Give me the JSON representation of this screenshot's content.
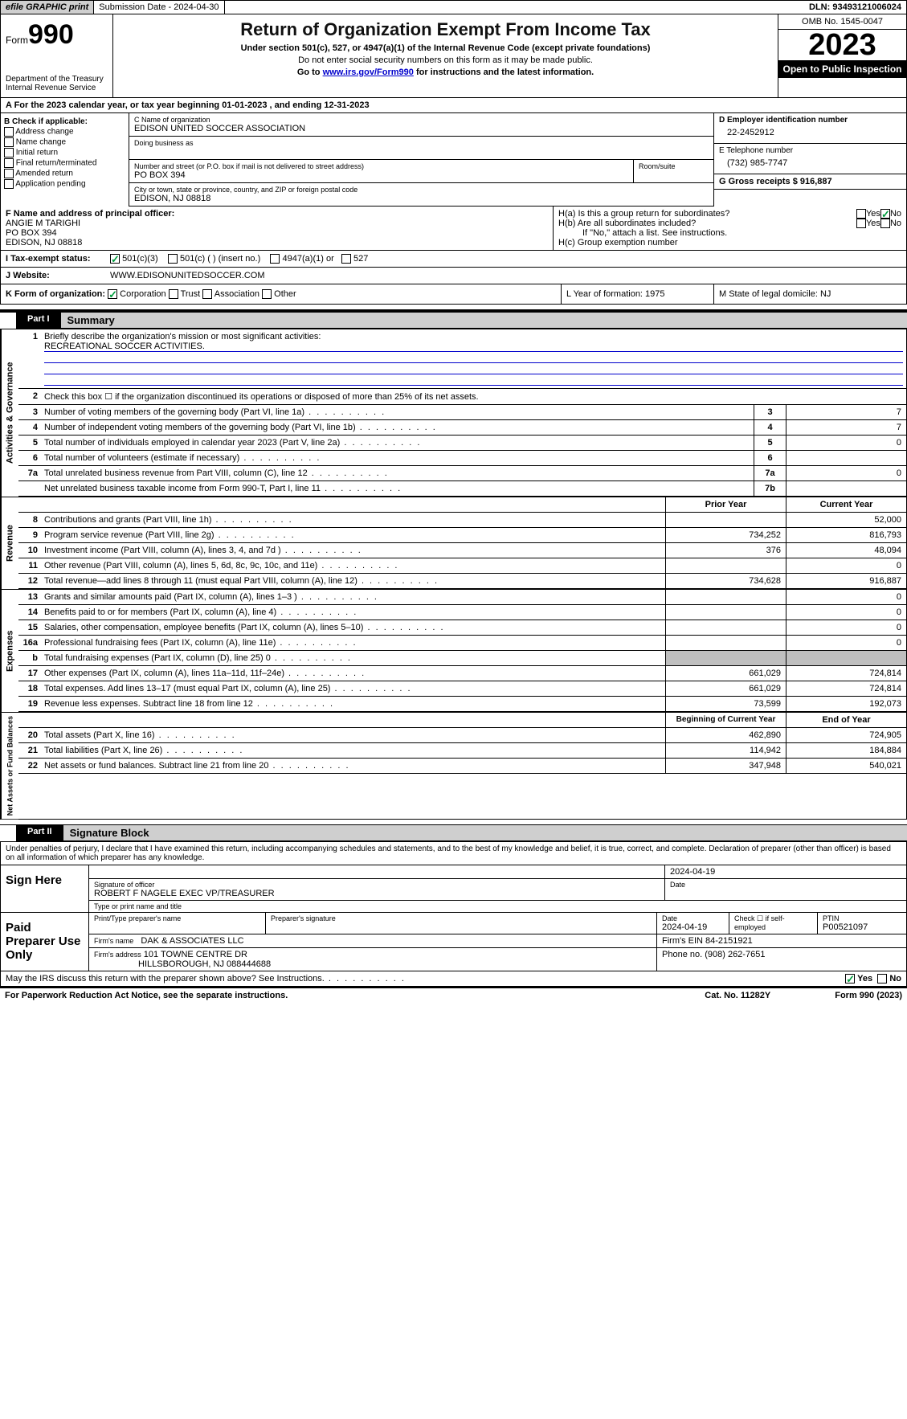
{
  "top": {
    "efile": "efile GRAPHIC print",
    "submission": "Submission Date - 2024-04-30",
    "dln": "DLN: 93493121006024"
  },
  "header": {
    "form_label": "Form",
    "form_num": "990",
    "dept": "Department of the Treasury Internal Revenue Service",
    "title": "Return of Organization Exempt From Income Tax",
    "sub": "Under section 501(c), 527, or 4947(a)(1) of the Internal Revenue Code (except private foundations)",
    "note1": "Do not enter social security numbers on this form as it may be made public.",
    "note2_pre": "Go to ",
    "note2_link": "www.irs.gov/Form990",
    "note2_post": " for instructions and the latest information.",
    "omb": "OMB No. 1545-0047",
    "year": "2023",
    "open": "Open to Public Inspection"
  },
  "line_a": "A For the 2023 calendar year, or tax year beginning 01-01-2023    , and ending 12-31-2023",
  "col_b": {
    "title": "B Check if applicable:",
    "items": [
      "Address change",
      "Name change",
      "Initial return",
      "Final return/terminated",
      "Amended return",
      "Application pending"
    ]
  },
  "col_c": {
    "name_label": "C Name of organization",
    "name": "EDISON UNITED SOCCER ASSOCIATION",
    "dba_label": "Doing business as",
    "street_label": "Number and street (or P.O. box if mail is not delivered to street address)",
    "street": "PO BOX 394",
    "room_label": "Room/suite",
    "city_label": "City or town, state or province, country, and ZIP or foreign postal code",
    "city": "EDISON, NJ  08818"
  },
  "col_d": {
    "label": "D Employer identification number",
    "val": "22-2452912"
  },
  "col_e": {
    "label": "E Telephone number",
    "val": "(732) 985-7747"
  },
  "col_g": {
    "label": "G Gross receipts $ 916,887"
  },
  "row_f": {
    "label": "F  Name and address of principal officer:",
    "name": "ANGIE M TARIGHI",
    "addr1": "PO BOX 394",
    "addr2": "EDISON, NJ  08818",
    "ha": "H(a)  Is this a group return for subordinates?",
    "hb": "H(b)  Are all subordinates included?",
    "hnote": "If \"No,\" attach a list. See instructions.",
    "hc": "H(c)  Group exemption number"
  },
  "line_i": {
    "label": "I  Tax-exempt status:",
    "opt1": "501(c)(3)",
    "opt2": "501(c) (   ) (insert no.)",
    "opt3": "4947(a)(1) or",
    "opt4": "527"
  },
  "line_j": {
    "label": "J  Website:",
    "val": "WWW.EDISONUNITEDSOCCER.COM"
  },
  "line_k": {
    "label": "K Form of organization:",
    "opts": [
      "Corporation",
      "Trust",
      "Association",
      "Other"
    ],
    "l": "L Year of formation: 1975",
    "m": "M State of legal domicile: NJ"
  },
  "part1": {
    "hdr": "Part I",
    "title": "Summary",
    "r1": "Briefly describe the organization's mission or most significant activities:",
    "r1_val": "RECREATIONAL SOCCER ACTIVITIES.",
    "r2": "Check this box ☐ if the organization discontinued its operations or disposed of more than 25% of its net assets.",
    "rows_gov": [
      {
        "n": "3",
        "d": "Number of voting members of the governing body (Part VI, line 1a)",
        "b": "3",
        "v": "7"
      },
      {
        "n": "4",
        "d": "Number of independent voting members of the governing body (Part VI, line 1b)",
        "b": "4",
        "v": "7"
      },
      {
        "n": "5",
        "d": "Total number of individuals employed in calendar year 2023 (Part V, line 2a)",
        "b": "5",
        "v": "0"
      },
      {
        "n": "6",
        "d": "Total number of volunteers (estimate if necessary)",
        "b": "6",
        "v": ""
      },
      {
        "n": "7a",
        "d": "Total unrelated business revenue from Part VIII, column (C), line 12",
        "b": "7a",
        "v": "0"
      },
      {
        "n": "",
        "d": "Net unrelated business taxable income from Form 990-T, Part I, line 11",
        "b": "7b",
        "v": ""
      }
    ],
    "col_hdr": {
      "py": "Prior Year",
      "cy": "Current Year"
    },
    "rows_rev": [
      {
        "n": "8",
        "d": "Contributions and grants (Part VIII, line 1h)",
        "py": "",
        "cy": "52,000"
      },
      {
        "n": "9",
        "d": "Program service revenue (Part VIII, line 2g)",
        "py": "734,252",
        "cy": "816,793"
      },
      {
        "n": "10",
        "d": "Investment income (Part VIII, column (A), lines 3, 4, and 7d )",
        "py": "376",
        "cy": "48,094"
      },
      {
        "n": "11",
        "d": "Other revenue (Part VIII, column (A), lines 5, 6d, 8c, 9c, 10c, and 11e)",
        "py": "",
        "cy": "0"
      },
      {
        "n": "12",
        "d": "Total revenue—add lines 8 through 11 (must equal Part VIII, column (A), line 12)",
        "py": "734,628",
        "cy": "916,887"
      }
    ],
    "rows_exp": [
      {
        "n": "13",
        "d": "Grants and similar amounts paid (Part IX, column (A), lines 1–3 )",
        "py": "",
        "cy": "0"
      },
      {
        "n": "14",
        "d": "Benefits paid to or for members (Part IX, column (A), line 4)",
        "py": "",
        "cy": "0"
      },
      {
        "n": "15",
        "d": "Salaries, other compensation, employee benefits (Part IX, column (A), lines 5–10)",
        "py": "",
        "cy": "0"
      },
      {
        "n": "16a",
        "d": "Professional fundraising fees (Part IX, column (A), line 11e)",
        "py": "",
        "cy": "0"
      },
      {
        "n": "b",
        "d": "Total fundraising expenses (Part IX, column (D), line 25) 0",
        "py": "shade",
        "cy": "shade"
      },
      {
        "n": "17",
        "d": "Other expenses (Part IX, column (A), lines 11a–11d, 11f–24e)",
        "py": "661,029",
        "cy": "724,814"
      },
      {
        "n": "18",
        "d": "Total expenses. Add lines 13–17 (must equal Part IX, column (A), line 25)",
        "py": "661,029",
        "cy": "724,814"
      },
      {
        "n": "19",
        "d": "Revenue less expenses. Subtract line 18 from line 12",
        "py": "73,599",
        "cy": "192,073"
      }
    ],
    "col_hdr2": {
      "py": "Beginning of Current Year",
      "cy": "End of Year"
    },
    "rows_na": [
      {
        "n": "20",
        "d": "Total assets (Part X, line 16)",
        "py": "462,890",
        "cy": "724,905"
      },
      {
        "n": "21",
        "d": "Total liabilities (Part X, line 26)",
        "py": "114,942",
        "cy": "184,884"
      },
      {
        "n": "22",
        "d": "Net assets or fund balances. Subtract line 21 from line 20",
        "py": "347,948",
        "cy": "540,021"
      }
    ],
    "tabs": {
      "gov": "Activities & Governance",
      "rev": "Revenue",
      "exp": "Expenses",
      "na": "Net Assets or Fund Balances"
    }
  },
  "part2": {
    "hdr": "Part II",
    "title": "Signature Block",
    "decl": "Under penalties of perjury, I declare that I have examined this return, including accompanying schedules and statements, and to the best of my knowledge and belief, it is true, correct, and complete. Declaration of preparer (other than officer) is based on all information of which preparer has any knowledge.",
    "sign_here": "Sign Here",
    "sig_date": "2024-04-19",
    "sig_of_label": "Signature of officer",
    "sig_date_label": "Date",
    "officer": "ROBERT F NAGELE  EXEC VP/TREASURER",
    "type_name": "Type or print name and title",
    "paid": "Paid Preparer Use Only",
    "prep_name_label": "Print/Type preparer's name",
    "prep_sig_label": "Preparer's signature",
    "prep_date_label": "Date",
    "prep_date": "2024-04-19",
    "self_emp": "Check ☐ if self-employed",
    "ptin_label": "PTIN",
    "ptin": "P00521097",
    "firm_name_label": "Firm's name",
    "firm_name": "DAK & ASSOCIATES LLC",
    "firm_ein": "Firm's EIN 84-2151921",
    "firm_addr_label": "Firm's address",
    "firm_addr1": "101 TOWNE CENTRE DR",
    "firm_addr2": "HILLSBOROUGH, NJ  088444688",
    "phone": "Phone no. (908) 262-7651",
    "discuss": "May the IRS discuss this return with the preparer shown above? See Instructions.",
    "yes": "Yes",
    "no": "No"
  },
  "footer": {
    "left": "For Paperwork Reduction Act Notice, see the separate instructions.",
    "mid": "Cat. No. 11282Y",
    "right": "Form 990 (2023)"
  }
}
